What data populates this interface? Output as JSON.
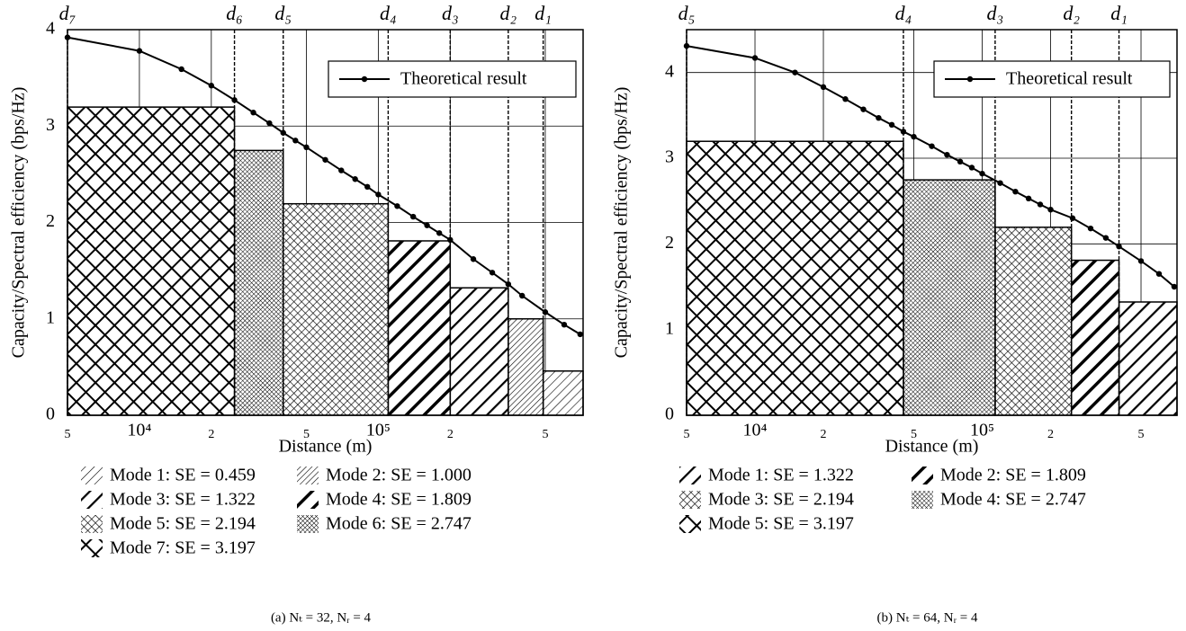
{
  "chart_data": [
    {
      "type": "step",
      "caption": "(a) Nₜ = 32, Nᵣ = 4",
      "xlabel": "Distance (m)",
      "ylabel": "Capacity/Spectral efficiency (bps/Hz)",
      "xscale": "log",
      "grid": true,
      "legend_position": "upper right",
      "xlim": [
        5000,
        720000
      ],
      "ylim": [
        0,
        4
      ],
      "xticks": [
        {
          "value": 5000,
          "label": "5"
        },
        {
          "value": 10000,
          "label": "10⁴"
        },
        {
          "value": 20000,
          "label": "2"
        },
        {
          "value": 50000,
          "label": "5"
        },
        {
          "value": 100000,
          "label": "10⁵"
        },
        {
          "value": 200000,
          "label": "2"
        },
        {
          "value": 500000,
          "label": "5"
        }
      ],
      "yticks": [
        0,
        1,
        2,
        3,
        4
      ],
      "thresholds": [
        {
          "label": "d₁",
          "x": 490000
        },
        {
          "label": "d₂",
          "x": 350000
        },
        {
          "label": "d₃",
          "x": 200000
        },
        {
          "label": "d₄",
          "x": 110000
        },
        {
          "label": "d₅",
          "x": 40000
        },
        {
          "label": "d₆",
          "x": 25000
        },
        {
          "label": "d₇",
          "x": 5000
        }
      ],
      "modes": [
        {
          "name": "Mode 1: SE = 0.459",
          "value": 0.459,
          "pattern": "diag-sparse"
        },
        {
          "name": "Mode 2: SE = 1.000",
          "value": 1.0,
          "pattern": "diag-thin"
        },
        {
          "name": "Mode 3: SE = 1.322",
          "value": 1.322,
          "pattern": "diag-med"
        },
        {
          "name": "Mode 4: SE = 1.809",
          "value": 1.809,
          "pattern": "diag-thick"
        },
        {
          "name": "Mode 5: SE = 2.194",
          "value": 2.194,
          "pattern": "cross-med"
        },
        {
          "name": "Mode 6: SE = 2.747",
          "value": 2.747,
          "pattern": "cross-fine"
        },
        {
          "name": "Mode 7: SE = 3.197",
          "value": 3.197,
          "pattern": "xx"
        }
      ],
      "series": [
        {
          "name": "Theoretical result",
          "color": "#000000",
          "x": [
            5000,
            10000,
            15000,
            20000,
            25000,
            30000,
            35000,
            40000,
            45000,
            50000,
            60000,
            70000,
            80000,
            90000,
            100000,
            120000,
            140000,
            160000,
            180000,
            200000,
            250000,
            300000,
            350000,
            400000,
            500000,
            600000,
            700000
          ],
          "values": [
            3.92,
            3.78,
            3.59,
            3.42,
            3.27,
            3.14,
            3.03,
            2.93,
            2.85,
            2.78,
            2.65,
            2.54,
            2.45,
            2.37,
            2.29,
            2.17,
            2.06,
            1.97,
            1.89,
            1.82,
            1.62,
            1.48,
            1.36,
            1.24,
            1.07,
            0.94,
            0.84
          ]
        }
      ]
    },
    {
      "type": "step",
      "caption": "(b) Nₜ = 64, Nᵣ = 4",
      "xlabel": "Distance (m)",
      "ylabel": "Capacity/Spectral efficiency (bps/Hz)",
      "xscale": "log",
      "grid": true,
      "legend_position": "upper right",
      "xlim": [
        5000,
        720000
      ],
      "ylim": [
        0,
        4.5
      ],
      "xticks": [
        {
          "value": 5000,
          "label": "5"
        },
        {
          "value": 10000,
          "label": "10⁴"
        },
        {
          "value": 20000,
          "label": "2"
        },
        {
          "value": 50000,
          "label": "5"
        },
        {
          "value": 100000,
          "label": "10⁵"
        },
        {
          "value": 200000,
          "label": "2"
        },
        {
          "value": 500000,
          "label": "5"
        }
      ],
      "yticks": [
        0,
        1,
        2,
        3,
        4
      ],
      "thresholds": [
        {
          "label": "d₁",
          "x": 400000
        },
        {
          "label": "d₂",
          "x": 247000
        },
        {
          "label": "d₃",
          "x": 114000
        },
        {
          "label": "d₄",
          "x": 45000
        },
        {
          "label": "d₅",
          "x": 5000
        }
      ],
      "modes": [
        {
          "name": "Mode 1: SE = 1.322",
          "value": 1.322,
          "pattern": "diag-med"
        },
        {
          "name": "Mode 2: SE = 1.809",
          "value": 1.809,
          "pattern": "diag-thick"
        },
        {
          "name": "Mode 3: SE = 2.194",
          "value": 2.194,
          "pattern": "cross-med"
        },
        {
          "name": "Mode 4: SE = 2.747",
          "value": 2.747,
          "pattern": "cross-fine"
        },
        {
          "name": "Mode 5: SE = 3.197",
          "value": 3.197,
          "pattern": "xx"
        }
      ],
      "series": [
        {
          "name": "Theoretical result",
          "color": "#000000",
          "x": [
            5000,
            10000,
            15000,
            20000,
            25000,
            30000,
            35000,
            40000,
            45000,
            50000,
            60000,
            70000,
            80000,
            90000,
            100000,
            120000,
            140000,
            160000,
            180000,
            200000,
            250000,
            300000,
            350000,
            400000,
            500000,
            600000,
            700000
          ],
          "values": [
            4.31,
            4.17,
            4.0,
            3.83,
            3.69,
            3.57,
            3.47,
            3.39,
            3.31,
            3.25,
            3.14,
            3.04,
            2.96,
            2.89,
            2.82,
            2.71,
            2.61,
            2.53,
            2.46,
            2.4,
            2.3,
            2.18,
            2.07,
            1.97,
            1.8,
            1.65,
            1.5
          ]
        }
      ]
    }
  ]
}
